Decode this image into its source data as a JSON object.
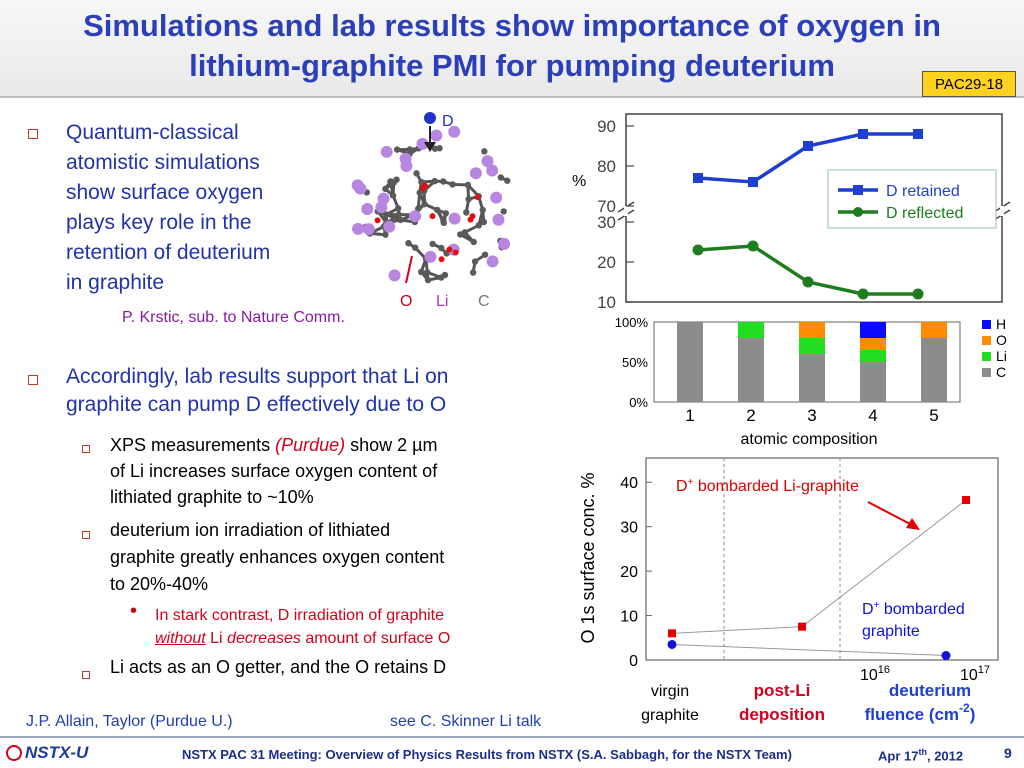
{
  "slide": {
    "title_line1": "Simulations and lab results show importance of oxygen in",
    "title_line2": "lithium-graphite PMI for pumping deuterium",
    "badge": "PAC29-18",
    "page_number": "9"
  },
  "bullet1": {
    "lines": [
      "Quantum-classical",
      "atomistic simulations",
      "show surface oxygen",
      "plays key role in the",
      "retention of deuterium",
      "in graphite"
    ],
    "citation": "P. Krstic, sub. to Nature Comm."
  },
  "molecule_labels": {
    "d": "D",
    "o": "O",
    "li": "Li",
    "c": "C"
  },
  "bullet2": {
    "line1": "Accordingly, lab results support that Li on",
    "line2": "graphite can pump D effectively due to O"
  },
  "sub1": {
    "text_a": "XPS measurements ",
    "purdue": "(Purdue)",
    "text_b": " show 2 µm",
    "line2": "of Li increases surface oxygen content of",
    "line3": "lithiated graphite to ~10%"
  },
  "sub2": {
    "line1": "deuterium ion irradiation of lithiated",
    "line2": "graphite greatly enhances oxygen content",
    "line3": "to 20%-40%"
  },
  "sub3": {
    "line1": "In stark contrast, D irradiation of graphite",
    "without": "without",
    "li": " Li ",
    "decreases": "decreases",
    "rest": " amount of surface O"
  },
  "sub4": {
    "text": "Li acts as an O getter, and the O retains D"
  },
  "credits": {
    "left": "J.P. Allain, Taylor (Purdue U.)",
    "right": "see C. Skinner Li talk"
  },
  "footer": {
    "logo": "NSTX-U",
    "text": "NSTX PAC 31 Meeting: Overview of Physics Results from NSTX (S.A. Sabbagh, for the NSTX Team)",
    "date": "Apr 17",
    "date_sup": "th",
    "date_year": ", 2012"
  },
  "chart_data": [
    {
      "type": "line",
      "ylabel": "%",
      "x": [
        1,
        2,
        3,
        4,
        5
      ],
      "yticks": [
        10,
        20,
        30,
        70,
        80,
        90
      ],
      "series": [
        {
          "name": "D retained",
          "values": [
            77,
            76,
            85,
            88,
            88
          ],
          "color": "#1f3fd1"
        },
        {
          "name": "D reflected",
          "values": [
            23,
            24,
            15,
            12,
            12
          ],
          "color": "#1e7d1e"
        }
      ]
    },
    {
      "type": "bar",
      "xlabel": "atomic composition",
      "categories": [
        "1",
        "2",
        "3",
        "4",
        "5"
      ],
      "yticks": [
        "0%",
        "50%",
        "100%"
      ],
      "series": [
        {
          "name": "C",
          "values": [
            100,
            80,
            60,
            50,
            80
          ],
          "color": "#8c8c8c"
        },
        {
          "name": "Li",
          "values": [
            0,
            20,
            20,
            15,
            0
          ],
          "color": "#22dd22"
        },
        {
          "name": "O",
          "values": [
            0,
            0,
            20,
            15,
            20
          ],
          "color": "#ff8c00"
        },
        {
          "name": "H",
          "values": [
            0,
            0,
            0,
            20,
            0
          ],
          "color": "#0a0aff"
        }
      ]
    },
    {
      "type": "scatter",
      "ylabel": "O 1s surface conc. %",
      "ylim": [
        0,
        45
      ],
      "yticks": [
        0,
        10,
        20,
        30,
        40
      ],
      "xlabels": {
        "virgin": [
          "virgin",
          "graphite"
        ],
        "postli": [
          "post-Li",
          "deposition"
        ],
        "fluence": [
          "deuterium",
          "fluence (cm",
          ")"
        ],
        "fluence_sup": "-2"
      },
      "xticks": {
        "e16": "10",
        "e16_sup": "16",
        "e17": "10",
        "e17_sup": "17"
      },
      "series": [
        {
          "name": "D+ bombarded Li-graphite",
          "values": [
            6,
            7.5,
            36
          ],
          "color": "#e00000"
        },
        {
          "name": "D+ bombarded graphite",
          "values": [
            3.5,
            1
          ],
          "color": "#1010e0"
        }
      ],
      "annotations": {
        "li_a": "D",
        "li_sup": "+",
        "li_b": " bombarded Li-graphite",
        "gr_a": "D",
        "gr_sup": "+",
        "gr_b": " bombarded",
        "gr_c": "graphite"
      }
    }
  ]
}
